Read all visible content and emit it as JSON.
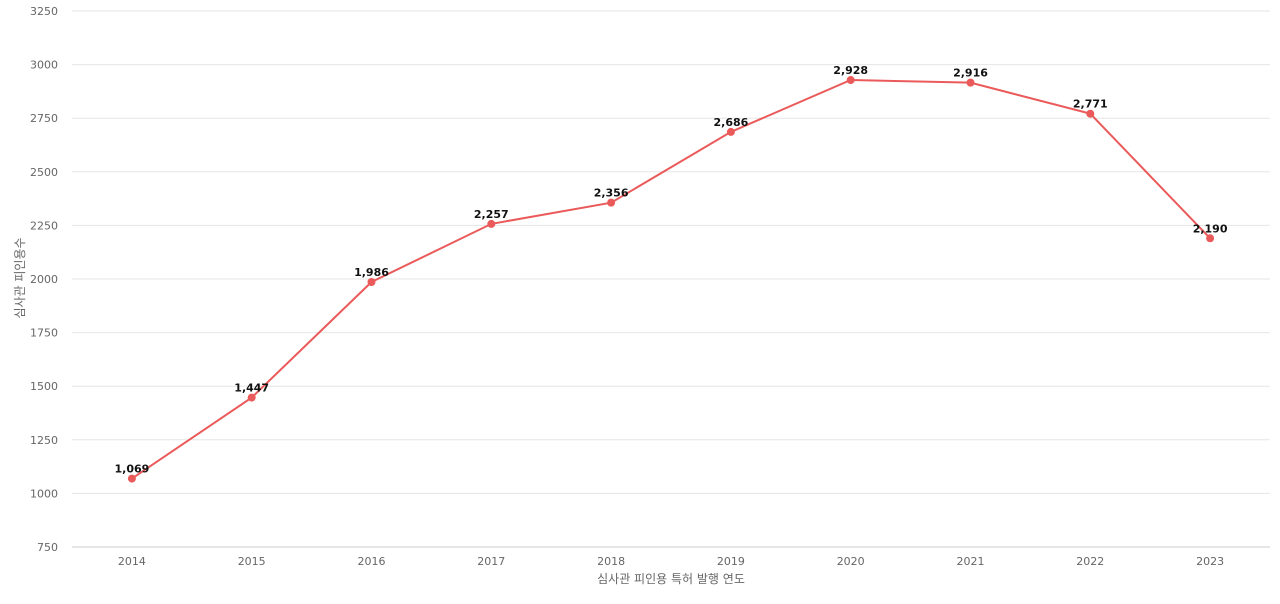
{
  "chart_data": {
    "type": "line",
    "title": "",
    "xlabel": "심사관 피인용 특허 발행 연도",
    "ylabel": "심사관 피인용수",
    "categories": [
      "2014",
      "2015",
      "2016",
      "2017",
      "2018",
      "2019",
      "2020",
      "2021",
      "2022",
      "2023"
    ],
    "series": [
      {
        "values": [
          1069,
          1447,
          1986,
          2257,
          2356,
          2686,
          2928,
          2916,
          2771,
          2190
        ],
        "labels": [
          "1,069",
          "1,447",
          "1,986",
          "2,257",
          "2,356",
          "2,686",
          "2,928",
          "2,916",
          "2,771",
          "2,190"
        ],
        "color": "#eb5a5a"
      }
    ],
    "ylim": [
      750,
      3250
    ],
    "yticks": [
      "750",
      "1000",
      "1250",
      "1500",
      "1750",
      "2000",
      "2250",
      "2500",
      "2750",
      "3000",
      "3250"
    ],
    "grid": true,
    "legend": "none"
  }
}
